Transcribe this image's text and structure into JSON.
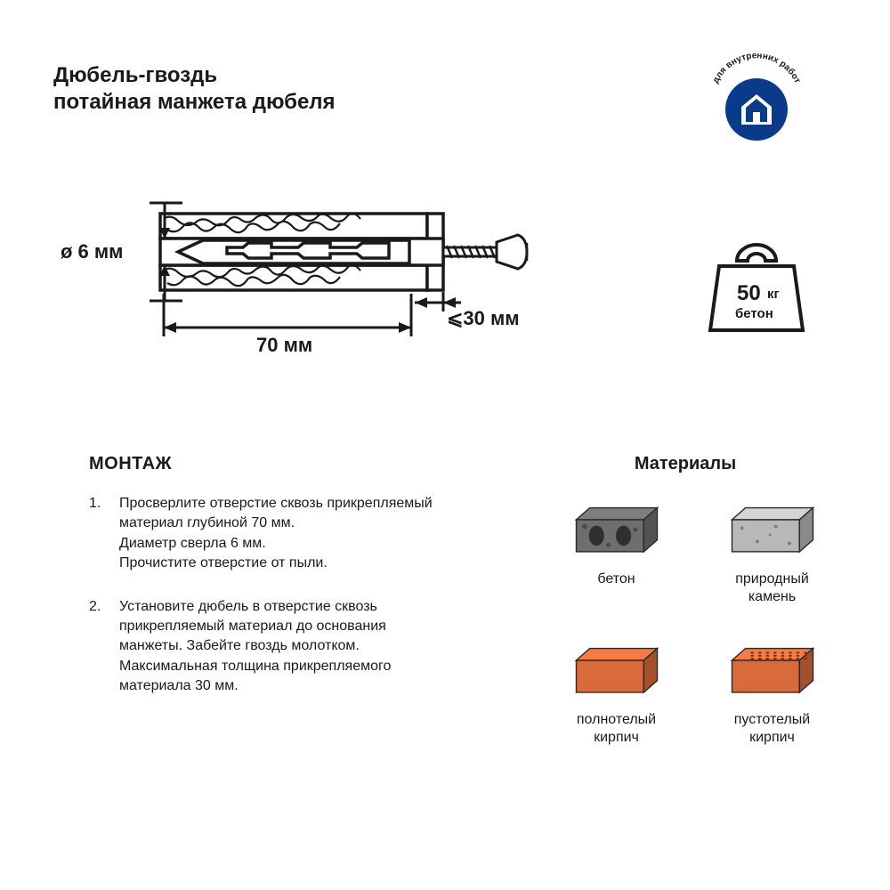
{
  "header": {
    "title_line1": "Дюбель-гвоздь",
    "title_line2": "потайная манжета дюбеля",
    "badge_text": "для внутренних работ"
  },
  "diagram": {
    "diameter": "ø 6 мм",
    "length": "70 мм",
    "max_thickness": "⩽30 мм",
    "stroke_color": "#1a1a1a",
    "fill_bg": "#ffffff"
  },
  "weight": {
    "value": "50",
    "unit": "кг",
    "material": "бетон"
  },
  "installation": {
    "heading": "МОНТАЖ",
    "steps": [
      [
        "Просверлите отверстие сквозь прикрепляемый",
        "материал глубиной 70 мм.",
        "Диаметр сверла 6 мм.",
        "Прочистите отверстие от пыли."
      ],
      [
        "Установите дюбель в отверстие сквозь",
        "прикрепляемый материал до основания",
        "манжеты. Забейте гвоздь молотком.",
        "Максимальная толщина прикрепляемого",
        "материала 30 мм."
      ]
    ]
  },
  "materials": {
    "heading": "Материалы",
    "items": [
      {
        "label1": "бетон",
        "label2": "",
        "fill": "#6e6e6e",
        "type": "hollow-block"
      },
      {
        "label1": "природный",
        "label2": "камень",
        "fill": "#b8b8b8",
        "type": "stone"
      },
      {
        "label1": "полнотелый",
        "label2": "кирпич",
        "fill": "#d96a3a",
        "type": "solid-brick"
      },
      {
        "label1": "пустотелый",
        "label2": "кирпич",
        "fill": "#d96a3a",
        "type": "hollow-brick"
      }
    ]
  },
  "colors": {
    "badge_blue": "#0a3a8a",
    "white": "#ffffff",
    "text": "#1a1a1a"
  }
}
